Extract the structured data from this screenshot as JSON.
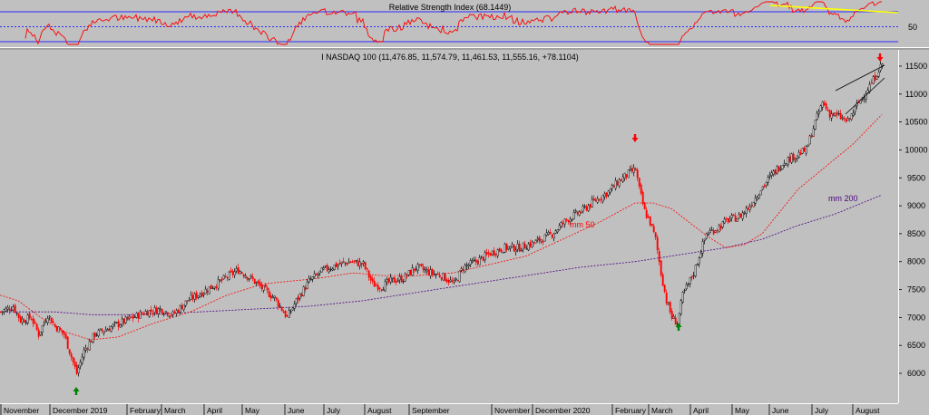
{
  "chart_data": [
    {
      "type": "line",
      "title": "Relative Strength Index (68.1449)",
      "series": [
        {
          "color": "#ff0000"
        }
      ],
      "levels": [
        70,
        50,
        30
      ],
      "y_tick_labels": [
        "50"
      ],
      "trendline_color": "#ffff00"
    },
    {
      "type": "candlestick",
      "title": "I NASDAQ 100 (11,476.85, 11,574.79, 11,461.53, 11,555.16, +78.1104)",
      "ylim": [
        5700,
        11900
      ],
      "y_ticks": [
        6000,
        6500,
        7000,
        7500,
        8000,
        8500,
        9000,
        9500,
        10000,
        10500,
        11000,
        11500
      ],
      "x_labels": [
        "November",
        "December 2019",
        "February",
        "March",
        "April",
        "May",
        "June",
        "July",
        "August",
        "September",
        "November",
        "December 2020",
        "February",
        "March",
        "April",
        "May",
        "June",
        "July",
        "August"
      ],
      "series": [
        {
          "name": "mm 50",
          "color": "#ff0000",
          "style": "dotted"
        },
        {
          "name": "mm 200",
          "color": "#4b0082",
          "style": "dotted"
        }
      ],
      "candle_colors": {
        "up": "#000000",
        "down": "#ff0000"
      },
      "annotations": {
        "up_arrows": [
          "December 2018 low (~6000)",
          "March 2020 low (~6800)"
        ],
        "down_arrows": [
          "February 2020 peak (~9700)",
          "August 2020 (~11600)"
        ],
        "up_arrow_color": "#008000",
        "down_arrow_color": "#ff0000",
        "rising_wedge_color": "#000000"
      }
    }
  ]
}
